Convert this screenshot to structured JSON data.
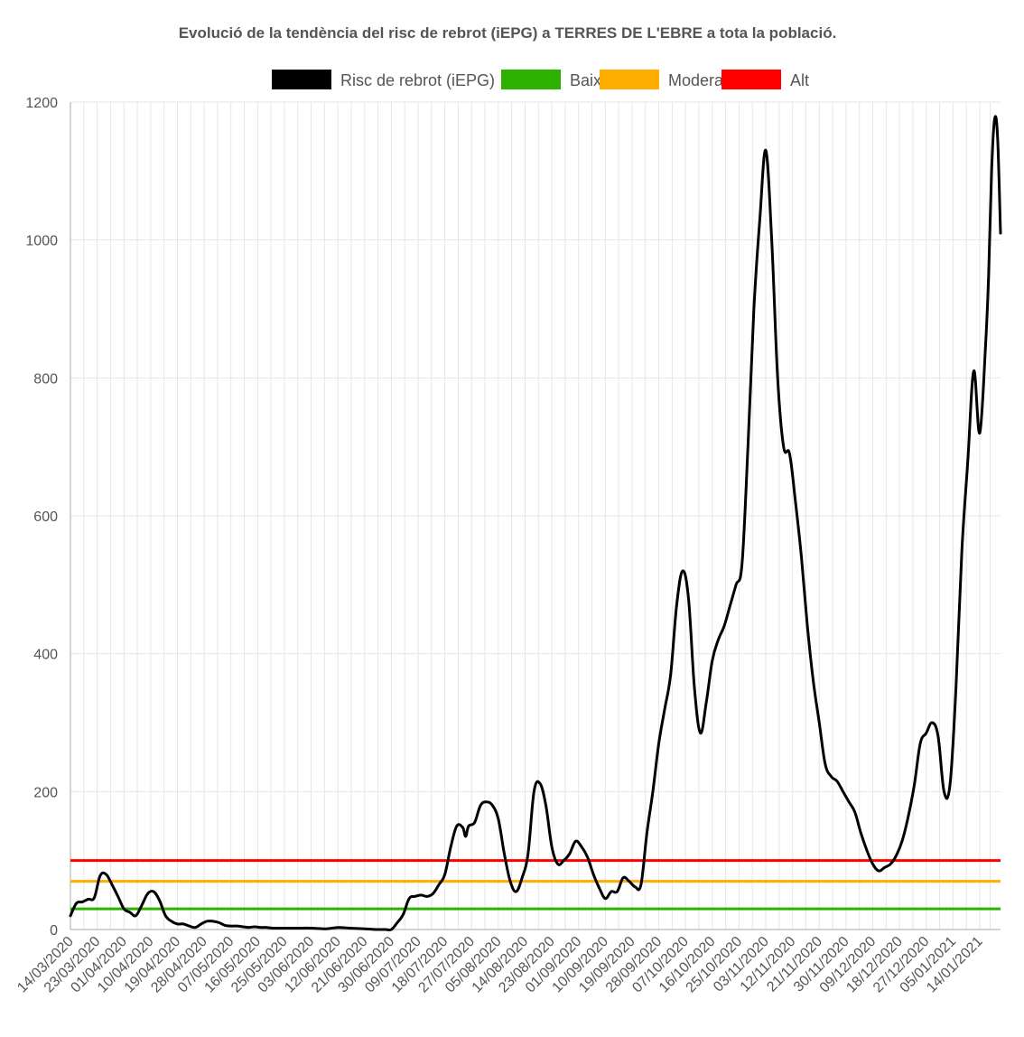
{
  "chart_data": {
    "type": "line",
    "title": "Evolució de la tendència del risc de rebrot (iEPG) a TERRES DE L'EBRE a tota la població.",
    "xlabel": "",
    "ylabel": "",
    "ylim": [
      0,
      1200
    ],
    "yticks": [
      0,
      200,
      400,
      600,
      800,
      1000,
      1200
    ],
    "grid": true,
    "legend_position": "top",
    "x_tick_labels": [
      "14/03/2020",
      "23/03/2020",
      "01/04/2020",
      "10/04/2020",
      "19/04/2020",
      "28/04/2020",
      "07/05/2020",
      "16/05/2020",
      "25/05/2020",
      "03/06/2020",
      "12/06/2020",
      "21/06/2020",
      "30/06/2020",
      "09/07/2020",
      "18/07/2020",
      "27/07/2020",
      "05/08/2020",
      "14/08/2020",
      "23/08/2020",
      "01/09/2020",
      "10/09/2020",
      "19/09/2020",
      "28/09/2020",
      "07/10/2020",
      "16/10/2020",
      "25/10/2020",
      "03/11/2020",
      "12/11/2020",
      "21/11/2020",
      "30/11/2020",
      "09/12/2020",
      "18/12/2020",
      "27/12/2020",
      "05/01/2021",
      "14/01/2021"
    ],
    "x_start": "14/03/2020",
    "x_end": "21/01/2021",
    "series": [
      {
        "name": "Risc de rebrot (iEPG)",
        "color": "#000000",
        "points": [
          [
            "14/03/2020",
            20
          ],
          [
            "16/03/2020",
            38
          ],
          [
            "18/03/2020",
            40
          ],
          [
            "20/03/2020",
            44
          ],
          [
            "22/03/2020",
            46
          ],
          [
            "24/03/2020",
            78
          ],
          [
            "26/03/2020",
            80
          ],
          [
            "28/03/2020",
            65
          ],
          [
            "30/03/2020",
            48
          ],
          [
            "01/04/2020",
            30
          ],
          [
            "03/04/2020",
            25
          ],
          [
            "05/04/2020",
            20
          ],
          [
            "07/04/2020",
            35
          ],
          [
            "09/04/2020",
            52
          ],
          [
            "11/04/2020",
            55
          ],
          [
            "13/04/2020",
            42
          ],
          [
            "15/04/2020",
            20
          ],
          [
            "17/04/2020",
            12
          ],
          [
            "19/04/2020",
            8
          ],
          [
            "21/04/2020",
            8
          ],
          [
            "23/04/2020",
            5
          ],
          [
            "25/04/2020",
            3
          ],
          [
            "27/04/2020",
            8
          ],
          [
            "29/04/2020",
            12
          ],
          [
            "01/05/2020",
            12
          ],
          [
            "03/05/2020",
            10
          ],
          [
            "05/05/2020",
            6
          ],
          [
            "07/05/2020",
            5
          ],
          [
            "09/05/2020",
            5
          ],
          [
            "11/05/2020",
            4
          ],
          [
            "13/05/2020",
            3
          ],
          [
            "15/05/2020",
            4
          ],
          [
            "17/05/2020",
            3
          ],
          [
            "19/05/2020",
            3
          ],
          [
            "21/05/2020",
            2
          ],
          [
            "25/05/2020",
            2
          ],
          [
            "29/05/2020",
            2
          ],
          [
            "03/06/2020",
            2
          ],
          [
            "08/06/2020",
            1
          ],
          [
            "12/06/2020",
            3
          ],
          [
            "16/06/2020",
            2
          ],
          [
            "21/06/2020",
            1
          ],
          [
            "25/06/2020",
            0
          ],
          [
            "28/06/2020",
            0
          ],
          [
            "30/06/2020",
            0
          ],
          [
            "02/07/2020",
            10
          ],
          [
            "04/07/2020",
            22
          ],
          [
            "06/07/2020",
            45
          ],
          [
            "08/07/2020",
            48
          ],
          [
            "10/07/2020",
            50
          ],
          [
            "12/07/2020",
            48
          ],
          [
            "14/07/2020",
            52
          ],
          [
            "16/07/2020",
            65
          ],
          [
            "18/07/2020",
            80
          ],
          [
            "20/07/2020",
            120
          ],
          [
            "22/07/2020",
            150
          ],
          [
            "24/07/2020",
            148
          ],
          [
            "25/07/2020",
            135
          ],
          [
            "26/07/2020",
            150
          ],
          [
            "28/07/2020",
            155
          ],
          [
            "30/07/2020",
            180
          ],
          [
            "01/08/2020",
            185
          ],
          [
            "03/08/2020",
            180
          ],
          [
            "05/08/2020",
            160
          ],
          [
            "07/08/2020",
            110
          ],
          [
            "09/08/2020",
            70
          ],
          [
            "11/08/2020",
            55
          ],
          [
            "13/08/2020",
            75
          ],
          [
            "15/08/2020",
            110
          ],
          [
            "17/08/2020",
            200
          ],
          [
            "19/08/2020",
            212
          ],
          [
            "21/08/2020",
            180
          ],
          [
            "23/08/2020",
            120
          ],
          [
            "25/08/2020",
            95
          ],
          [
            "27/08/2020",
            100
          ],
          [
            "29/08/2020",
            110
          ],
          [
            "31/08/2020",
            128
          ],
          [
            "02/09/2020",
            120
          ],
          [
            "04/09/2020",
            105
          ],
          [
            "06/09/2020",
            80
          ],
          [
            "08/09/2020",
            60
          ],
          [
            "10/09/2020",
            45
          ],
          [
            "12/09/2020",
            55
          ],
          [
            "14/09/2020",
            55
          ],
          [
            "16/09/2020",
            75
          ],
          [
            "18/09/2020",
            70
          ],
          [
            "20/09/2020",
            62
          ],
          [
            "22/09/2020",
            65
          ],
          [
            "24/09/2020",
            140
          ],
          [
            "26/09/2020",
            200
          ],
          [
            "28/09/2020",
            270
          ],
          [
            "30/09/2020",
            320
          ],
          [
            "02/10/2020",
            370
          ],
          [
            "04/10/2020",
            470
          ],
          [
            "06/10/2020",
            520
          ],
          [
            "08/10/2020",
            480
          ],
          [
            "10/10/2020",
            350
          ],
          [
            "12/10/2020",
            285
          ],
          [
            "14/10/2020",
            330
          ],
          [
            "16/10/2020",
            390
          ],
          [
            "18/10/2020",
            420
          ],
          [
            "20/10/2020",
            440
          ],
          [
            "22/10/2020",
            470
          ],
          [
            "24/10/2020",
            500
          ],
          [
            "26/10/2020",
            530
          ],
          [
            "28/10/2020",
            700
          ],
          [
            "30/10/2020",
            900
          ],
          [
            "01/11/2020",
            1030
          ],
          [
            "03/11/2020",
            1130
          ],
          [
            "05/11/2020",
            1000
          ],
          [
            "07/11/2020",
            800
          ],
          [
            "09/11/2020",
            700
          ],
          [
            "11/11/2020",
            690
          ],
          [
            "13/11/2020",
            620
          ],
          [
            "15/11/2020",
            540
          ],
          [
            "17/11/2020",
            440
          ],
          [
            "19/11/2020",
            360
          ],
          [
            "21/11/2020",
            300
          ],
          [
            "23/11/2020",
            240
          ],
          [
            "25/11/2020",
            222
          ],
          [
            "27/11/2020",
            215
          ],
          [
            "29/11/2020",
            200
          ],
          [
            "01/12/2020",
            185
          ],
          [
            "03/12/2020",
            170
          ],
          [
            "05/12/2020",
            140
          ],
          [
            "07/12/2020",
            115
          ],
          [
            "09/12/2020",
            95
          ],
          [
            "11/12/2020",
            85
          ],
          [
            "13/12/2020",
            90
          ],
          [
            "15/12/2020",
            95
          ],
          [
            "17/12/2020",
            108
          ],
          [
            "19/12/2020",
            130
          ],
          [
            "21/12/2020",
            165
          ],
          [
            "23/12/2020",
            210
          ],
          [
            "25/12/2020",
            270
          ],
          [
            "27/12/2020",
            285
          ],
          [
            "29/12/2020",
            300
          ],
          [
            "31/12/2020",
            280
          ],
          [
            "02/01/2021",
            200
          ],
          [
            "04/01/2021",
            210
          ],
          [
            "06/01/2021",
            350
          ],
          [
            "08/01/2021",
            550
          ],
          [
            "10/01/2021",
            680
          ],
          [
            "12/01/2021",
            810
          ],
          [
            "14/01/2021",
            720
          ],
          [
            "16/01/2021",
            850
          ],
          [
            "17/01/2021",
            950
          ],
          [
            "18/01/2021",
            1100
          ],
          [
            "19/01/2021",
            1175
          ],
          [
            "20/01/2021",
            1150
          ],
          [
            "21/01/2021",
            1010
          ]
        ]
      },
      {
        "name": "Baix",
        "color": "#2db200",
        "constant": 30
      },
      {
        "name": "Moderat",
        "color": "#ffad00",
        "constant": 70
      },
      {
        "name": "Alt",
        "color": "#ff0000",
        "constant": 100
      }
    ]
  }
}
